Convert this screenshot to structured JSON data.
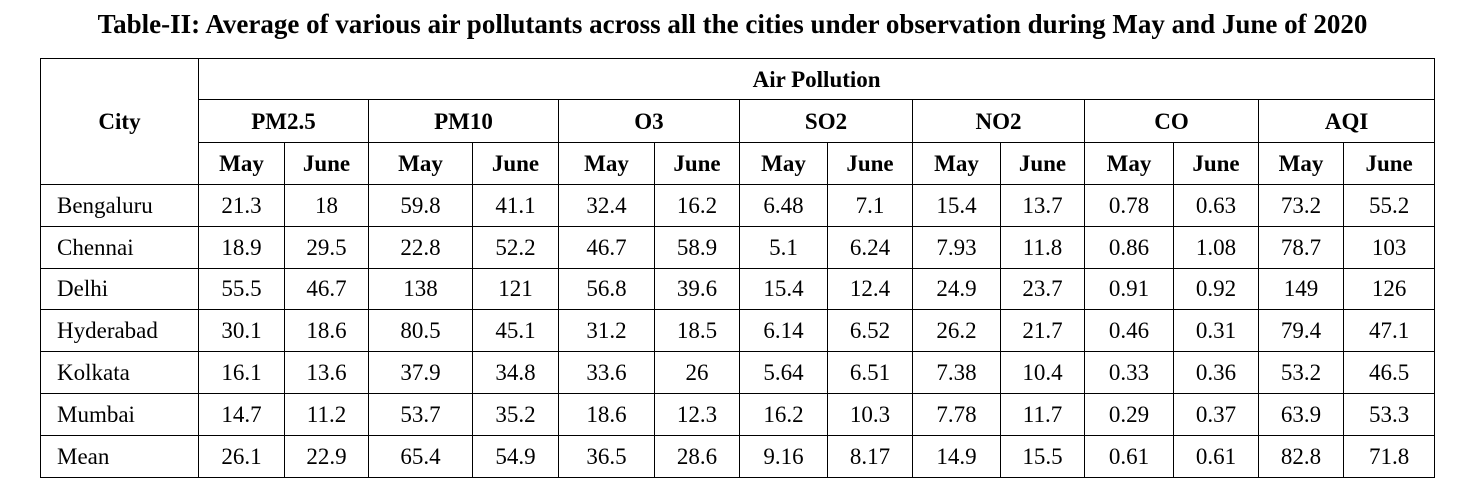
{
  "caption": "Table-II: Average of various air pollutants across all the cities under observation during May and June of 2020",
  "header": {
    "city": "City",
    "group": "Air Pollution",
    "pollutants": [
      "PM2.5",
      "PM10",
      "O3",
      "SO2",
      "NO2",
      "CO",
      "AQI"
    ],
    "months": [
      "May",
      "June"
    ]
  },
  "rows": [
    {
      "city": "Bengaluru",
      "values": [
        "21.3",
        "18",
        "59.8",
        "41.1",
        "32.4",
        "16.2",
        "6.48",
        "7.1",
        "15.4",
        "13.7",
        "0.78",
        "0.63",
        "73.2",
        "55.2"
      ]
    },
    {
      "city": "Chennai",
      "values": [
        "18.9",
        "29.5",
        "22.8",
        "52.2",
        "46.7",
        "58.9",
        "5.1",
        "6.24",
        "7.93",
        "11.8",
        "0.86",
        "1.08",
        "78.7",
        "103"
      ]
    },
    {
      "city": "Delhi",
      "values": [
        "55.5",
        "46.7",
        "138",
        "121",
        "56.8",
        "39.6",
        "15.4",
        "12.4",
        "24.9",
        "23.7",
        "0.91",
        "0.92",
        "149",
        "126"
      ]
    },
    {
      "city": "Hyderabad",
      "values": [
        "30.1",
        "18.6",
        "80.5",
        "45.1",
        "31.2",
        "18.5",
        "6.14",
        "6.52",
        "26.2",
        "21.7",
        "0.46",
        "0.31",
        "79.4",
        "47.1"
      ]
    },
    {
      "city": "Kolkata",
      "values": [
        "16.1",
        "13.6",
        "37.9",
        "34.8",
        "33.6",
        "26",
        "5.64",
        "6.51",
        "7.38",
        "10.4",
        "0.33",
        "0.36",
        "53.2",
        "46.5"
      ]
    },
    {
      "city": "Mumbai",
      "values": [
        "14.7",
        "11.2",
        "53.7",
        "35.2",
        "18.6",
        "12.3",
        "16.2",
        "10.3",
        "7.78",
        "11.7",
        "0.29",
        "0.37",
        "63.9",
        "53.3"
      ]
    },
    {
      "city": "Mean",
      "values": [
        "26.1",
        "22.9",
        "65.4",
        "54.9",
        "36.5",
        "28.6",
        "9.16",
        "8.17",
        "14.9",
        "15.5",
        "0.61",
        "0.61",
        "82.8",
        "71.8"
      ]
    }
  ]
}
